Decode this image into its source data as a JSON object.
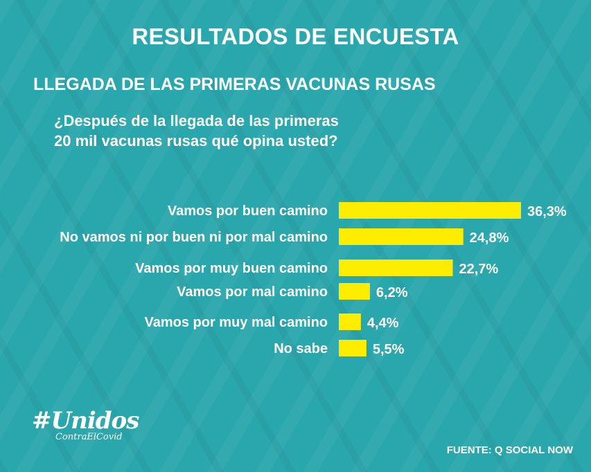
{
  "header": {
    "title": "RESULTADOS DE ENCUESTA",
    "subtitle": "LLEGADA DE LAS PRIMERAS VACUNAS RUSAS",
    "question_lines": [
      "¿Después de la llegada de las primeras",
      "20 mil vacunas rusas qué opina usted?"
    ]
  },
  "chart_data": {
    "type": "bar",
    "orientation": "horizontal",
    "categories": [
      "Vamos por buen camino",
      "No vamos ni por buen ni por mal camino",
      "Vamos por muy buen camino",
      "Vamos por mal camino",
      "Vamos por muy mal camino",
      "No sabe"
    ],
    "values": [
      36.3,
      24.8,
      22.7,
      6.2,
      4.4,
      5.5
    ],
    "value_labels": [
      "36,3%",
      "24,8%",
      "22,7%",
      "6,2%",
      "4,4%",
      "5,5%"
    ],
    "bar_color": "#ffed00",
    "grid": false,
    "legend": "none"
  },
  "footer": {
    "logo_text": "#Unidos",
    "logo_subtext": "ContraElCovid",
    "source": "FUENTE: Q SOCIAL NOW"
  },
  "colors": {
    "background": "#2aa7ac",
    "text": "#ffffff",
    "bar": "#ffed00"
  }
}
